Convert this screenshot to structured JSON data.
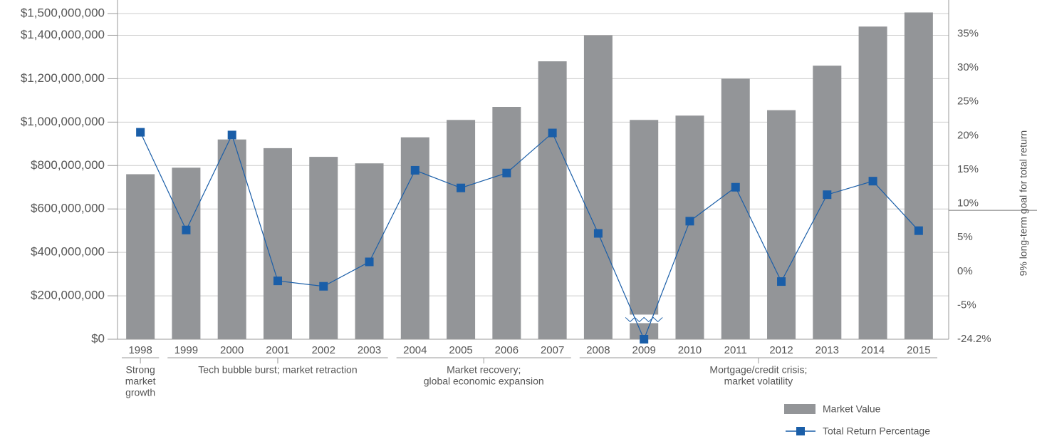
{
  "chart_data": {
    "type": "bar-line",
    "categories": [
      "1998",
      "1999",
      "2000",
      "2001",
      "2002",
      "2003",
      "2004",
      "2005",
      "2006",
      "2007",
      "2008",
      "2009",
      "2010",
      "2011",
      "2012",
      "2013",
      "2014",
      "2015"
    ],
    "series": [
      {
        "name": "Market Value",
        "type": "bar",
        "color": "#939598",
        "values": [
          760000000,
          790000000,
          920000000,
          880000000,
          840000000,
          810000000,
          930000000,
          1010000000,
          1070000000,
          1280000000,
          1400000000,
          1010000000,
          1030000000,
          1200000000,
          1055000000,
          1260000000,
          1440000000,
          1505000000
        ]
      },
      {
        "name": "Total Return Percentage",
        "type": "line",
        "axis": "y2",
        "color": "#1a5ea8",
        "values": [
          20.5,
          6.1,
          20.1,
          -1.4,
          -2.2,
          1.4,
          14.9,
          12.3,
          14.5,
          20.4,
          5.6,
          -24.2,
          7.4,
          12.4,
          -1.5,
          11.3,
          13.3,
          6.0
        ]
      }
    ],
    "ylim": [
      0,
      1500000000
    ],
    "yticks": [
      {
        "value": 0,
        "label": "$0"
      },
      {
        "value": 200000000,
        "label": "$200,000,000"
      },
      {
        "value": 400000000,
        "label": "$400,000,000"
      },
      {
        "value": 600000000,
        "label": "$600,000,000"
      },
      {
        "value": 800000000,
        "label": "$800,000,000"
      },
      {
        "value": 1000000000,
        "label": "$1,000,000,000"
      },
      {
        "value": 1200000000,
        "label": "$1,200,000,000"
      },
      {
        "value": 1400000000,
        "label": "$1,400,000,000"
      },
      {
        "value": 1500000000,
        "label": "$1,500,000,000"
      }
    ],
    "y2lim": [
      -10,
      38
    ],
    "y2_break": [
      -24.2,
      -10
    ],
    "y2ticks": [
      {
        "value": -24.2,
        "label": "-24.2%"
      },
      {
        "value": -5,
        "label": "-5%"
      },
      {
        "value": 0,
        "label": "0%"
      },
      {
        "value": 5,
        "label": "5%"
      },
      {
        "value": 10,
        "label": "10%"
      },
      {
        "value": 15,
        "label": "15%"
      },
      {
        "value": 20,
        "label": "20%"
      },
      {
        "value": 25,
        "label": "25%"
      },
      {
        "value": 30,
        "label": "30%"
      },
      {
        "value": 35,
        "label": "35%"
      }
    ],
    "goal": 9,
    "goal_label": "9% long-term goal for total return",
    "periods": [
      [
        "Strong",
        "market",
        "growth"
      ],
      [
        "Tech bubble burst; market retraction"
      ],
      [
        "Market recovery;",
        "global economic expansion"
      ],
      [
        "Mortgage/credit crisis;",
        "market volatility"
      ]
    ],
    "grid": true
  }
}
